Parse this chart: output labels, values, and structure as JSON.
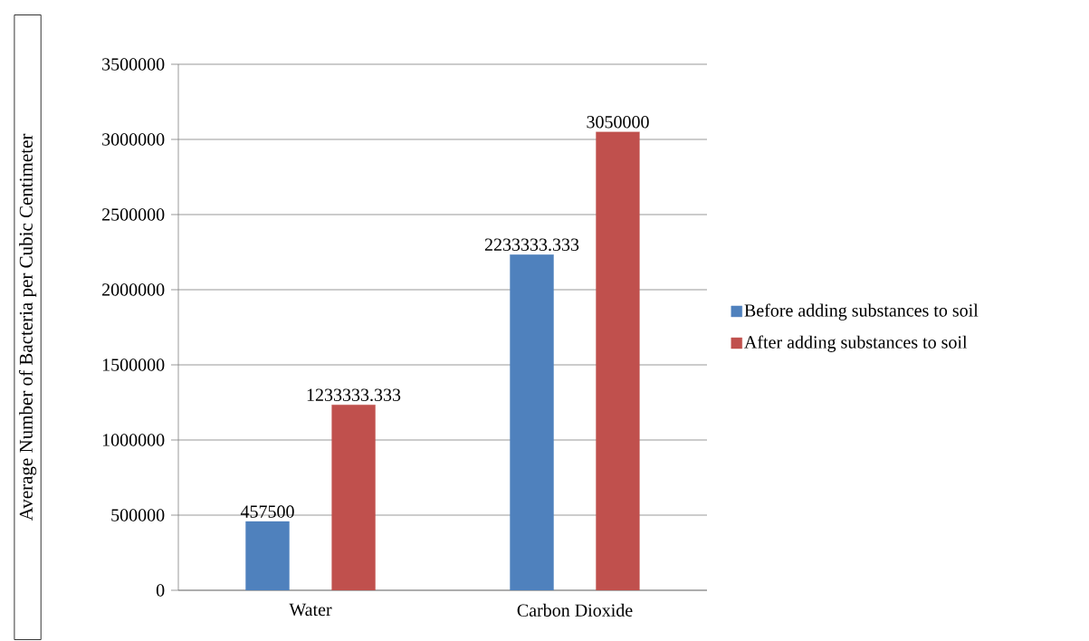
{
  "chart_data": {
    "type": "bar",
    "ylabel": "Average Number of Bacteria per Cubic Centimeter",
    "categories": [
      "Water",
      "Carbon Dioxide"
    ],
    "series": [
      {
        "name": "Before adding substances to soil",
        "color": "#4f81bd",
        "values": [
          457500,
          2233333.333
        ]
      },
      {
        "name": "After adding substances to soil",
        "color": "#c0504d",
        "values": [
          1233333.333,
          3050000
        ]
      }
    ],
    "ylim": [
      0,
      3500000
    ],
    "yticks": [
      0,
      500000,
      1000000,
      1500000,
      2000000,
      2500000,
      3000000,
      3500000
    ],
    "grid": "y",
    "legend": "right",
    "data_labels": true
  }
}
